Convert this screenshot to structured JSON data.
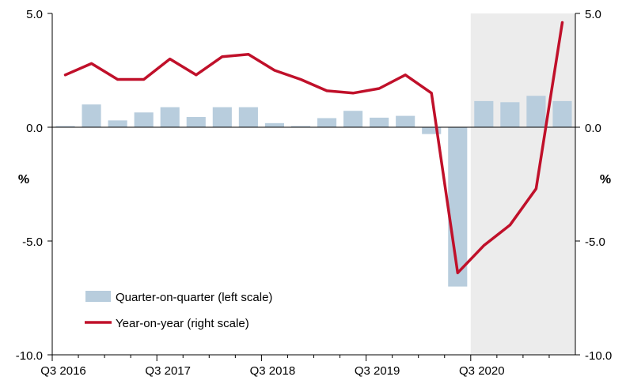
{
  "chart_data": {
    "type": "bar+line",
    "title": "",
    "categories": [
      "Q3 2016",
      "Q4 2016",
      "Q1 2017",
      "Q2 2017",
      "Q3 2017",
      "Q4 2017",
      "Q1 2018",
      "Q2 2018",
      "Q3 2018",
      "Q4 2018",
      "Q1 2019",
      "Q2 2019",
      "Q3 2019",
      "Q4 2019",
      "Q1 2020",
      "Q2 2020",
      "Q3 2020",
      "Q4 2020",
      "Q1 2021",
      "Q2 2021"
    ],
    "x_tick_labels": [
      "Q3 2016",
      "Q3 2017",
      "Q3 2018",
      "Q3 2019",
      "Q3 2020"
    ],
    "left_axis": {
      "label": "%",
      "ylim": [
        -10,
        5
      ],
      "ticks": [
        "5.0",
        "0.0",
        "-5.0",
        "-10.0"
      ]
    },
    "right_axis": {
      "label": "%",
      "ylim": [
        -10,
        5
      ],
      "ticks": [
        "5.0",
        "0.0",
        "-5.0",
        "-10.0"
      ]
    },
    "series": [
      {
        "name": "Quarter-on-quarter (left scale)",
        "type": "bar",
        "axis": "left",
        "color": "#b8cddd",
        "values": [
          0.05,
          1.0,
          0.3,
          0.65,
          0.88,
          0.45,
          0.88,
          0.88,
          0.18,
          0.05,
          0.4,
          0.72,
          0.42,
          0.5,
          -0.3,
          -7.0,
          1.15,
          1.1,
          1.38,
          1.15
        ]
      },
      {
        "name": "Year-on-year (right scale)",
        "type": "line",
        "axis": "right",
        "color": "#c0102a",
        "values": [
          2.3,
          2.8,
          2.1,
          2.1,
          3.0,
          2.3,
          3.1,
          3.2,
          2.5,
          2.1,
          1.6,
          1.5,
          1.7,
          2.3,
          1.5,
          -6.4,
          -5.2,
          -4.3,
          -2.7,
          4.6
        ]
      }
    ],
    "shaded_region": {
      "from": "Q3 2020",
      "to": "Q2 2021",
      "color": "#ececec"
    },
    "legend_position": "bottom-left",
    "grid": false
  }
}
